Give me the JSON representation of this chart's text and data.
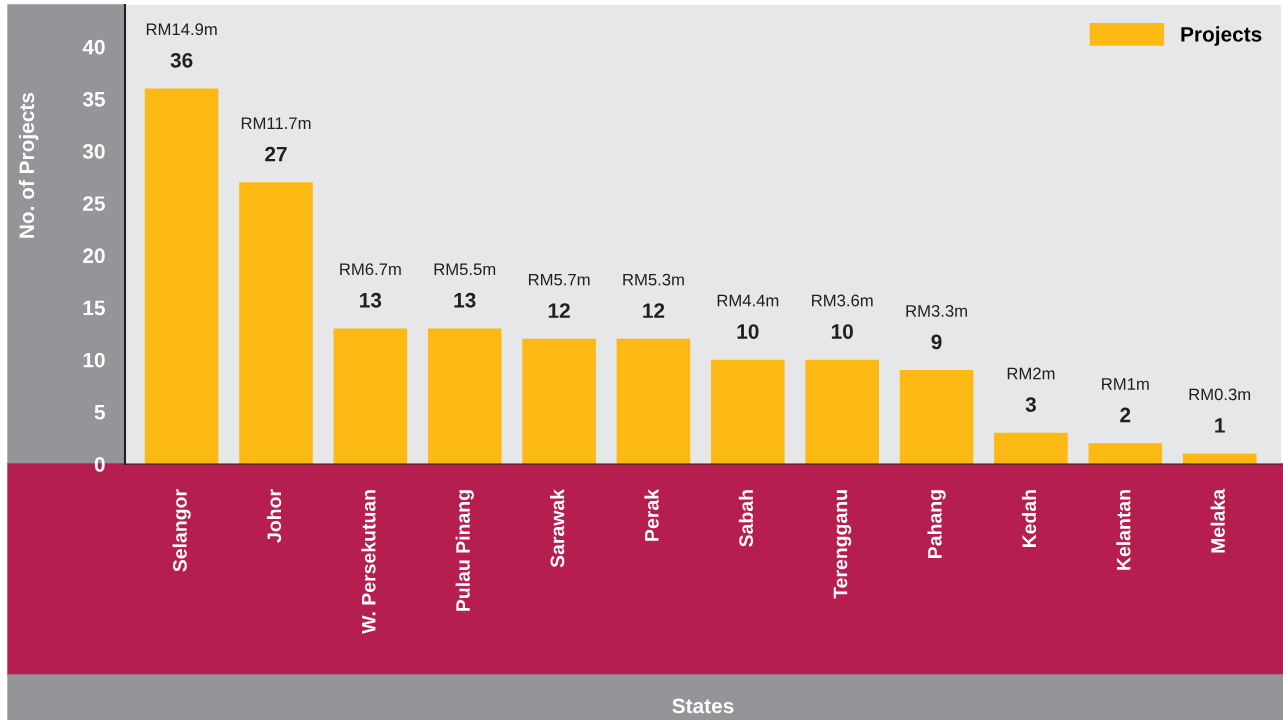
{
  "chart_data": {
    "type": "bar",
    "xlabel": "States",
    "ylabel": "No. of Projects",
    "categories": [
      "Selangor",
      "Johor",
      "W. Persekutuan",
      "Pulau Pinang",
      "Sarawak",
      "Perak",
      "Sabah",
      "Terengganu",
      "Pahang",
      "Kedah",
      "Kelantan",
      "Melaka"
    ],
    "series": [
      {
        "name": "Projects",
        "color": "#fdb913",
        "values": [
          36,
          27,
          13,
          13,
          12,
          12,
          10,
          10,
          9,
          3,
          2,
          1
        ]
      }
    ],
    "data_labels": true,
    "annotations": [
      "RM14.9m",
      "RM11.7m",
      "RM6.7m",
      "RM5.5m",
      "RM5.7m",
      "RM5.3m",
      "RM4.4m",
      "RM3.6m",
      "RM3.3m",
      "RM2m",
      "RM1m",
      "RM0.3m"
    ],
    "ylim": [
      0,
      44
    ],
    "yticks": [
      0,
      5,
      10,
      15,
      20,
      25,
      30,
      35,
      40
    ],
    "grid": false,
    "legend": "top right"
  }
}
